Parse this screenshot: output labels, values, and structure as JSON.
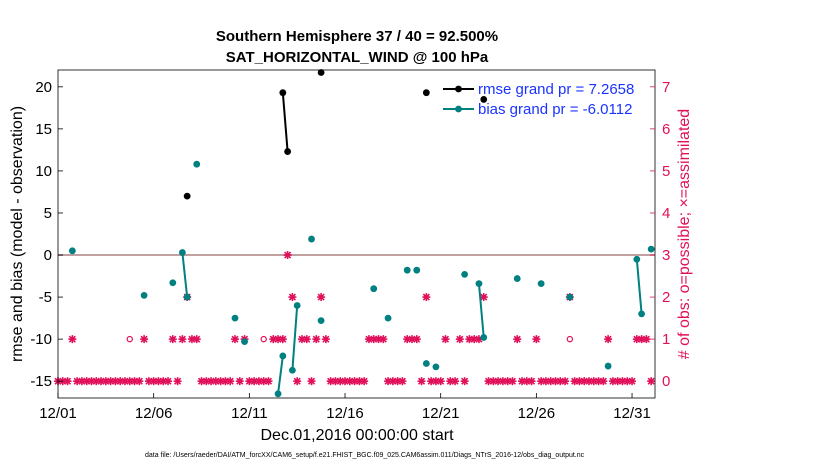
{
  "chart_data": {
    "type": "scatter",
    "title": "Southern Hemisphere 37 / 40 = 92.500%",
    "subtitle": "SAT_HORIZONTAL_WIND @ 100 hPa",
    "xlabel": "Dec.01,2016 00:00:00 start",
    "ylabel": "rmse and bias (model - observation)",
    "y2label": "# of obs: o=possible; ×=assimilated",
    "footer": "data file: /Users/raeder/DAI/ATM_forcXX/CAM6_setup/f.e21.FHIST_BGC.f09_025.CAM6assim.011/Diags_NTrS_2016-12/obs_diag_output.nc",
    "xlim": [
      0,
      31.2
    ],
    "ylim": [
      -17,
      22
    ],
    "y2lim": [
      -0.4,
      7.4
    ],
    "xticks": [
      0,
      5,
      10,
      15,
      20,
      25,
      30
    ],
    "xticklabels": [
      "12/01",
      "12/06",
      "12/11",
      "12/16",
      "12/21",
      "12/26",
      "12/31"
    ],
    "yticks": [
      -15,
      -10,
      -5,
      0,
      5,
      10,
      15,
      20
    ],
    "y2ticks": [
      0,
      1,
      2,
      3,
      4,
      5,
      6,
      7
    ],
    "zero_line": 0,
    "colors": {
      "rmse": "#000000",
      "bias": "#008080",
      "obs": "#e0105a",
      "zero": "#c0a0a0"
    },
    "legend": [
      {
        "name": "rmse grand pr = 7.2658",
        "series": "rmse"
      },
      {
        "name": "bias grand pr = -6.0112",
        "series": "bias"
      }
    ],
    "series": [
      {
        "name": "rmse",
        "points": [
          [
            6.75,
            7
          ],
          [
            11.75,
            19.3
          ],
          [
            12.0,
            12.3
          ],
          [
            13.75,
            21.7
          ],
          [
            19.25,
            19.3
          ],
          [
            22.25,
            18.5
          ]
        ],
        "segments": [
          [
            1,
            2
          ]
        ]
      },
      {
        "name": "bias",
        "points": [
          [
            0.75,
            0.5
          ],
          [
            4.5,
            -4.8
          ],
          [
            6.0,
            -3.3
          ],
          [
            6.5,
            0.3
          ],
          [
            6.75,
            -5.0
          ],
          [
            7.25,
            10.8
          ],
          [
            9.25,
            -7.5
          ],
          [
            9.75,
            -10.3
          ],
          [
            11.5,
            -16.5
          ],
          [
            11.75,
            -12.0
          ],
          [
            12.25,
            -13.7
          ],
          [
            12.5,
            -6.0
          ],
          [
            13.25,
            1.9
          ],
          [
            13.75,
            -7.8
          ],
          [
            16.5,
            -4.0
          ],
          [
            17.25,
            -7.5
          ],
          [
            18.25,
            -1.8
          ],
          [
            18.75,
            -1.8
          ],
          [
            19.25,
            -12.9
          ],
          [
            19.75,
            -13.3
          ],
          [
            21.25,
            -2.3
          ],
          [
            22.0,
            -3.4
          ],
          [
            22.25,
            -9.8
          ],
          [
            24.0,
            -2.8
          ],
          [
            25.25,
            -3.4
          ],
          [
            26.75,
            -5.0
          ],
          [
            28.75,
            -13.2
          ],
          [
            30.25,
            -0.5
          ],
          [
            30.5,
            -7.0
          ],
          [
            31.0,
            0.7
          ]
        ],
        "segments": [
          [
            3,
            4
          ],
          [
            8,
            9
          ],
          [
            10,
            11
          ],
          [
            21,
            22
          ],
          [
            27,
            28
          ]
        ]
      },
      {
        "name": "obs_assimilated",
        "points": [
          [
            0,
            0
          ],
          [
            0.25,
            0
          ],
          [
            0.5,
            0
          ],
          [
            0.75,
            1
          ],
          [
            1,
            0
          ],
          [
            1.25,
            0
          ],
          [
            1.5,
            0
          ],
          [
            1.75,
            0
          ],
          [
            2,
            0
          ],
          [
            2.25,
            0
          ],
          [
            2.5,
            0
          ],
          [
            2.75,
            0
          ],
          [
            3,
            0
          ],
          [
            3.25,
            0
          ],
          [
            3.5,
            0
          ],
          [
            3.75,
            0
          ],
          [
            4,
            0
          ],
          [
            4.25,
            0
          ],
          [
            4.5,
            1
          ],
          [
            4.75,
            0
          ],
          [
            5,
            0
          ],
          [
            5.25,
            0
          ],
          [
            5.5,
            0
          ],
          [
            5.75,
            0
          ],
          [
            6,
            1
          ],
          [
            6.25,
            0
          ],
          [
            6.5,
            1
          ],
          [
            6.75,
            2
          ],
          [
            7,
            1
          ],
          [
            7.25,
            1
          ],
          [
            7.5,
            0
          ],
          [
            7.75,
            0
          ],
          [
            8,
            0
          ],
          [
            8.25,
            0
          ],
          [
            8.5,
            0
          ],
          [
            8.75,
            0
          ],
          [
            9,
            0
          ],
          [
            9.25,
            1
          ],
          [
            9.5,
            0
          ],
          [
            9.75,
            1
          ],
          [
            10,
            0
          ],
          [
            10.25,
            0
          ],
          [
            10.5,
            0
          ],
          [
            10.75,
            0
          ],
          [
            11,
            0
          ],
          [
            11.25,
            1
          ],
          [
            11.5,
            1
          ],
          [
            11.75,
            1
          ],
          [
            12,
            3
          ],
          [
            12.25,
            2
          ],
          [
            12.5,
            0
          ],
          [
            12.75,
            1
          ],
          [
            13,
            1
          ],
          [
            13.25,
            0
          ],
          [
            13.5,
            1
          ],
          [
            13.75,
            2
          ],
          [
            14,
            1
          ],
          [
            14.25,
            0
          ],
          [
            14.5,
            0
          ],
          [
            14.75,
            0
          ],
          [
            15,
            0
          ],
          [
            15.25,
            0
          ],
          [
            15.5,
            0
          ],
          [
            15.75,
            0
          ],
          [
            16,
            0
          ],
          [
            16.25,
            1
          ],
          [
            16.5,
            1
          ],
          [
            16.75,
            1
          ],
          [
            17,
            1
          ],
          [
            17.25,
            0
          ],
          [
            17.5,
            0
          ],
          [
            17.75,
            0
          ],
          [
            18,
            0
          ],
          [
            18.25,
            1
          ],
          [
            18.5,
            1
          ],
          [
            18.75,
            1
          ],
          [
            19,
            0
          ],
          [
            19.25,
            2
          ],
          [
            19.5,
            0
          ],
          [
            19.75,
            0
          ],
          [
            20,
            0
          ],
          [
            20.25,
            1
          ],
          [
            20.5,
            0
          ],
          [
            20.75,
            0
          ],
          [
            21,
            1
          ],
          [
            21.25,
            0
          ],
          [
            21.5,
            1
          ],
          [
            21.75,
            1
          ],
          [
            22,
            1
          ],
          [
            22.25,
            2
          ],
          [
            22.5,
            0
          ],
          [
            22.75,
            0
          ],
          [
            23,
            0
          ],
          [
            23.25,
            0
          ],
          [
            23.5,
            0
          ],
          [
            23.75,
            0
          ],
          [
            24,
            1
          ],
          [
            24.25,
            0
          ],
          [
            24.5,
            0
          ],
          [
            24.75,
            0
          ],
          [
            25,
            1
          ],
          [
            25.25,
            0
          ],
          [
            25.5,
            0
          ],
          [
            25.75,
            0
          ],
          [
            26,
            0
          ],
          [
            26.25,
            0
          ],
          [
            26.5,
            0
          ],
          [
            26.75,
            2
          ],
          [
            27,
            0
          ],
          [
            27.25,
            0
          ],
          [
            27.5,
            0
          ],
          [
            27.75,
            0
          ],
          [
            28,
            0
          ],
          [
            28.25,
            0
          ],
          [
            28.5,
            0
          ],
          [
            28.75,
            1
          ],
          [
            29,
            0
          ],
          [
            29.25,
            0
          ],
          [
            29.5,
            0
          ],
          [
            29.75,
            0
          ],
          [
            30,
            0
          ],
          [
            30.25,
            1
          ],
          [
            30.5,
            1
          ],
          [
            30.75,
            1
          ],
          [
            31,
            0
          ]
        ]
      },
      {
        "name": "obs_possible_only",
        "points": [
          [
            3.75,
            1
          ],
          [
            10.75,
            1
          ],
          [
            26.75,
            1
          ]
        ]
      }
    ]
  }
}
